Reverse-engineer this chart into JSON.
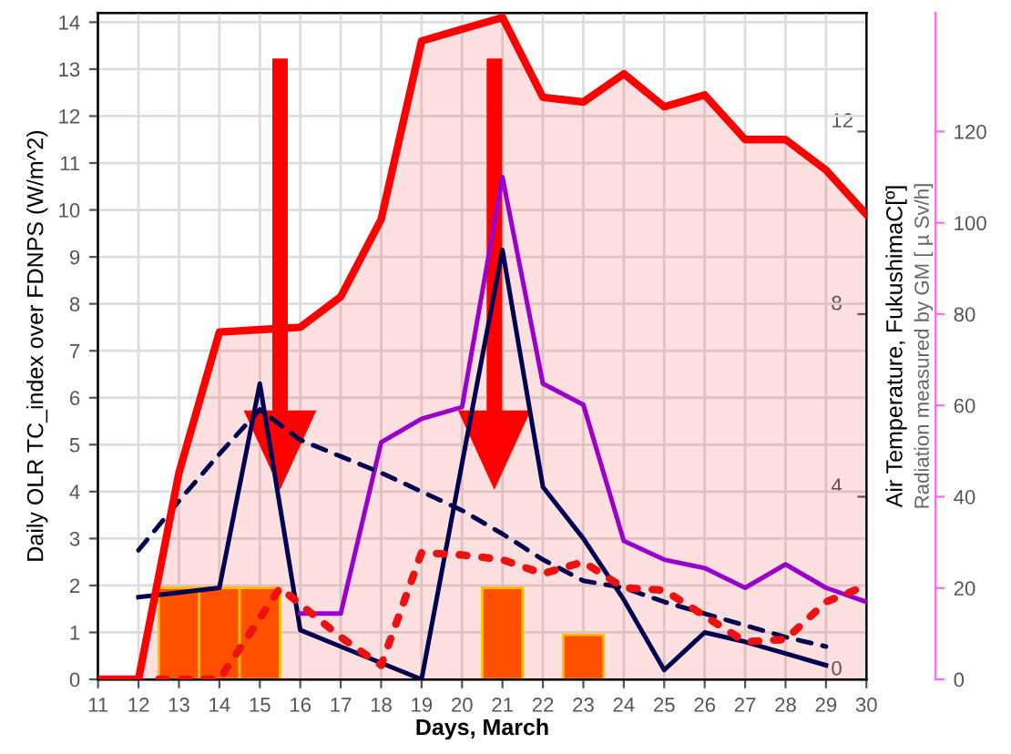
{
  "chart_data": {
    "type": "line",
    "xlabel": "Days, March",
    "ylabel": "Daily OLR TC_index over FDNPS (W/m^2)",
    "y2label": "Air Temperature, FukushimaC[º]",
    "y3label": "Radiation measured by GM [ µ Sv/h]",
    "xlim": [
      11,
      30
    ],
    "xticks": [
      11,
      12,
      13,
      14,
      15,
      16,
      17,
      18,
      19,
      20,
      21,
      22,
      23,
      24,
      25,
      26,
      27,
      28,
      29,
      30
    ],
    "ylim": [
      0,
      14.2
    ],
    "yticks": [
      0,
      1,
      2,
      3,
      4,
      5,
      6,
      7,
      8,
      9,
      10,
      11,
      12,
      13,
      14
    ],
    "y2lim": [
      0,
      14.6
    ],
    "y2ticks": [
      0,
      4,
      8,
      12
    ],
    "y3lim": [
      0,
      146
    ],
    "y3ticks": [
      0,
      20,
      40,
      60,
      80,
      100,
      120
    ],
    "grid": true,
    "series": [
      {
        "type": "bar",
        "color": "#ff4f00",
        "x": [
          13,
          14,
          15,
          21,
          23
        ],
        "values": [
          1.95,
          1.95,
          1.95,
          1.95,
          0.95
        ]
      },
      {
        "type": "area",
        "color": "#ff0000",
        "x": [
          11,
          12,
          13,
          14,
          15,
          16,
          17,
          18,
          19,
          20,
          21,
          22,
          23,
          24,
          25,
          26,
          27,
          28,
          29,
          30
        ],
        "values": [
          0,
          0,
          4.4,
          7.4,
          7.45,
          7.5,
          8.15,
          9.8,
          13.6,
          13.85,
          14.1,
          12.4,
          12.3,
          12.9,
          12.2,
          12.45,
          11.5,
          11.5,
          10.85,
          9.9
        ]
      },
      {
        "color": "#000050",
        "x": [
          12,
          13,
          14,
          15,
          16,
          17,
          18,
          19,
          20,
          21,
          22,
          23,
          24,
          25,
          26,
          27,
          28,
          29
        ],
        "values": [
          1.75,
          1.85,
          1.95,
          6.3,
          1.05,
          0.7,
          0.35,
          0.0,
          4.6,
          9.15,
          4.1,
          3.0,
          1.7,
          0.2,
          1.0,
          0.8,
          0.55,
          0.3
        ]
      },
      {
        "color": "#9900cc",
        "x": [
          16,
          17,
          18,
          19,
          20,
          21,
          22,
          23,
          24,
          25,
          26,
          27,
          28,
          29,
          30
        ],
        "values": [
          1.4,
          1.4,
          5.05,
          5.55,
          5.8,
          10.7,
          6.3,
          5.85,
          2.95,
          2.55,
          2.37,
          1.95,
          2.45,
          1.95,
          1.65
        ]
      },
      {
        "color": "#000050",
        "line_style": "dashed",
        "x": [
          12,
          13,
          14,
          15,
          16,
          17,
          18,
          19,
          20,
          21,
          22,
          23,
          24,
          25,
          26,
          27,
          28,
          29
        ],
        "values": [
          2.75,
          3.8,
          4.8,
          5.75,
          5.1,
          4.75,
          4.4,
          4.0,
          3.6,
          3.1,
          2.55,
          2.1,
          1.95,
          1.65,
          1.4,
          1.15,
          0.9,
          0.7
        ]
      },
      {
        "color": "#ee1111",
        "line_style": "dotted",
        "x": [
          12.5,
          14,
          15.5,
          16,
          17,
          18,
          19,
          20,
          21,
          22,
          23,
          24,
          25,
          26,
          27,
          28,
          29,
          30
        ],
        "values": [
          0,
          0,
          1.95,
          1.6,
          0.9,
          0.3,
          2.7,
          2.65,
          2.55,
          2.25,
          2.5,
          1.95,
          1.9,
          1.35,
          0.8,
          0.85,
          1.65,
          2.0
        ]
      }
    ]
  }
}
